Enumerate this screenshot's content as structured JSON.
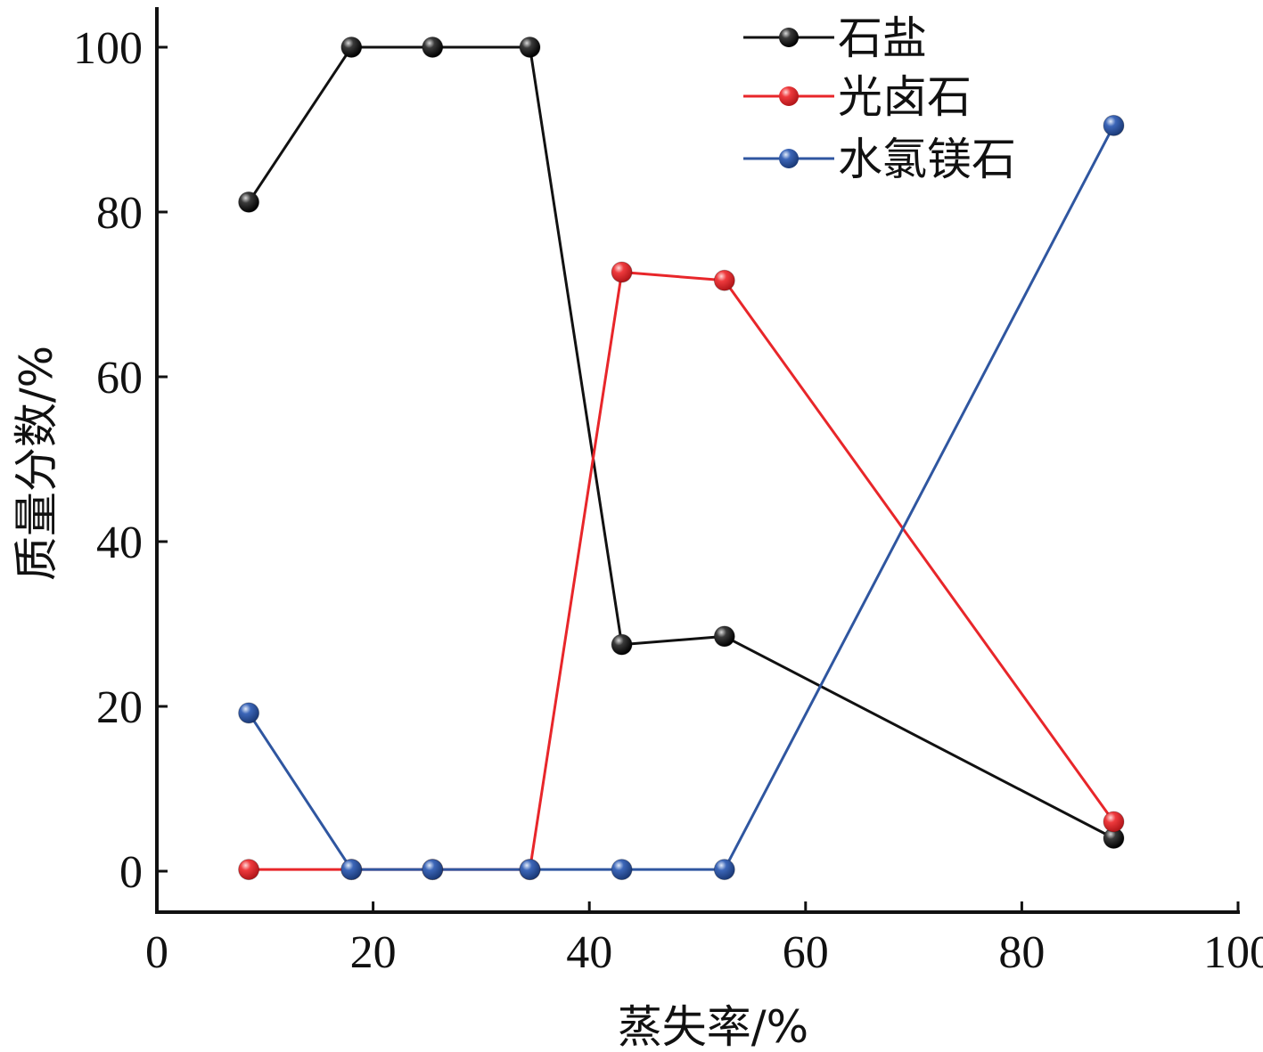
{
  "chart_data": {
    "type": "line",
    "xlabel": "蒸失率/%",
    "ylabel": "质量分数/%",
    "xlim": [
      0,
      100
    ],
    "ylim": [
      -5,
      105
    ],
    "xticks": [
      "0",
      "20",
      "40",
      "60",
      "80",
      "100"
    ],
    "yticks": [
      "0",
      "20",
      "40",
      "60",
      "80",
      "100"
    ],
    "grid": false,
    "legend_position": "top-right",
    "series": [
      {
        "name": "石盐",
        "color": "#111111",
        "x": [
          8.5,
          18,
          25.5,
          34.5,
          43,
          52.5,
          88.5
        ],
        "y": [
          81.2,
          100,
          100,
          100,
          27.5,
          28.5,
          4.0
        ]
      },
      {
        "name": "光卤石",
        "color": "#e8262a",
        "x": [
          8.5,
          18,
          25.5,
          34.5,
          43,
          52.5,
          88.5
        ],
        "y": [
          0.2,
          0.2,
          0.2,
          0.2,
          72.7,
          71.7,
          6.0
        ]
      },
      {
        "name": "水氯镁石",
        "color": "#2f56a0",
        "x": [
          8.5,
          18,
          25.5,
          34.5,
          43,
          52.5,
          88.5
        ],
        "y": [
          19.2,
          0.2,
          0.2,
          0.2,
          0.2,
          0.2,
          90.5
        ]
      }
    ]
  }
}
